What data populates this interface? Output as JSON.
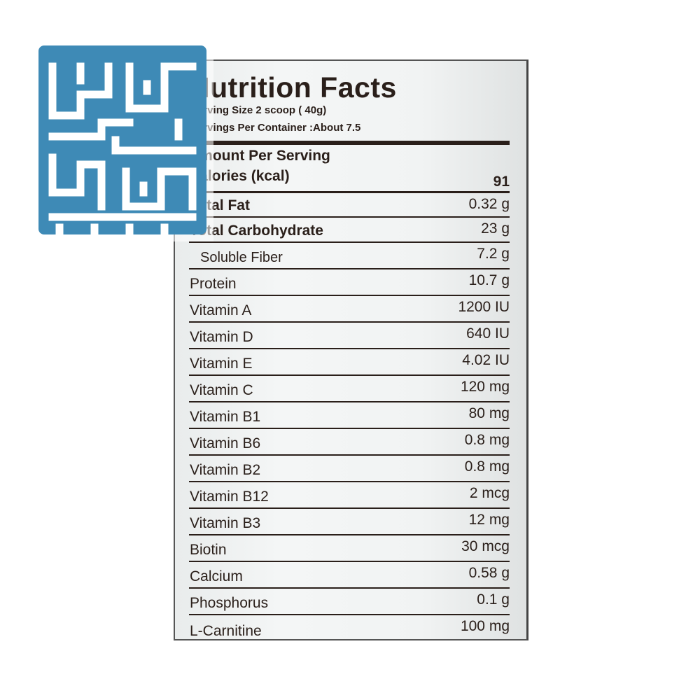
{
  "label": {
    "title": "Nutrition Facts",
    "serving_size": "Serving Size 2 scoop ( 40g)",
    "servings_per_container": "Servings Per Container   :About 7.5",
    "amount_per_serving": "Amount Per Serving",
    "calories": {
      "name": "Calories (kcal)",
      "value": "91"
    },
    "rows": [
      {
        "name": "Total Fat",
        "value": "0.32 g"
      },
      {
        "name": "Total Carbohydrate",
        "value": "23 g"
      },
      {
        "name": "Soluble Fiber",
        "value": "7.2 g"
      },
      {
        "name": "Protein",
        "value": "10.7 g"
      },
      {
        "name": "Vitamin A",
        "value": "1200 IU"
      },
      {
        "name": "Vitamin D",
        "value": "640 IU"
      },
      {
        "name": "Vitamin E",
        "value": "4.02 IU"
      },
      {
        "name": "Vitamin C",
        "value": "120 mg"
      },
      {
        "name": "Vitamin B1",
        "value": "80 mg"
      },
      {
        "name": "Vitamin B6",
        "value": "0.8 mg"
      },
      {
        "name": "Vitamin B2",
        "value": "0.8 mg"
      },
      {
        "name": "Vitamin B12",
        "value": "2 mcg"
      },
      {
        "name": "Vitamin B3",
        "value": "12 mg"
      },
      {
        "name": "Biotin",
        "value": "30 mcg"
      },
      {
        "name": "Calcium",
        "value": "0.58 g"
      },
      {
        "name": "Phosphorus",
        "value": "0.1 g"
      },
      {
        "name": "L-Carnitine",
        "value": "100 mg"
      }
    ]
  },
  "watermark": {
    "icon": "kufic-logo-icon",
    "color": "#3e8ab6"
  }
}
